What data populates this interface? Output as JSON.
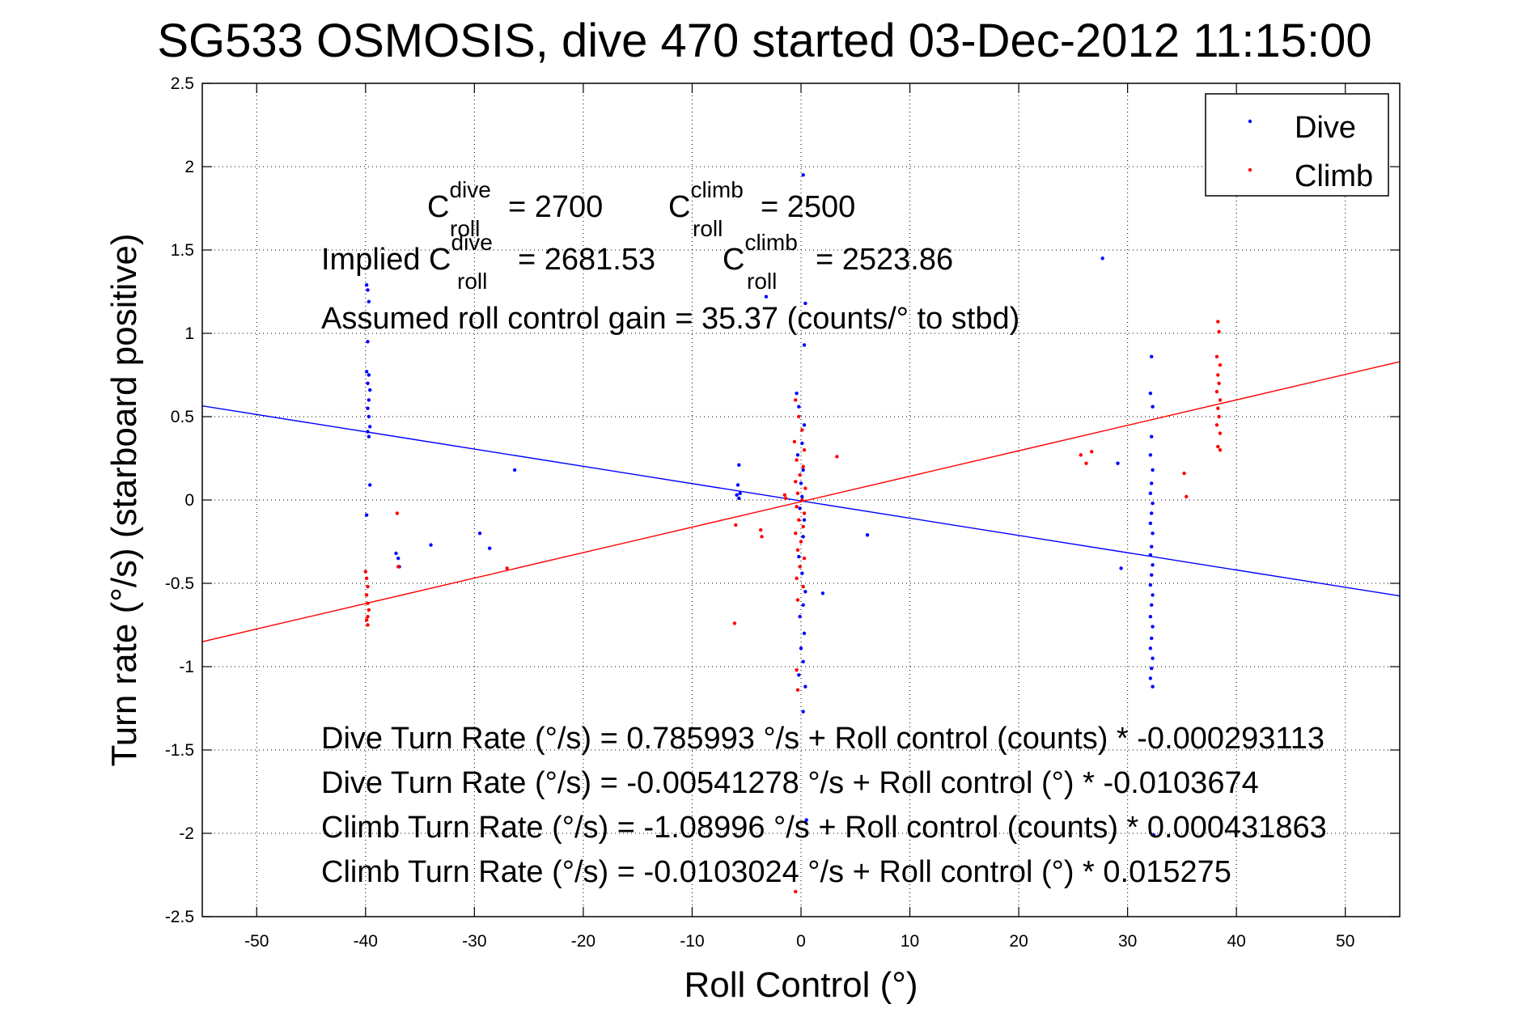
{
  "chart_data": {
    "type": "scatter",
    "title": "SG533 OSMOSIS, dive 470 started 03-Dec-2012 11:15:00",
    "xlabel": "Roll Control (°)",
    "ylabel": "Turn rate (°/s)  (starboard positive)",
    "xlim": [
      -55,
      55
    ],
    "ylim": [
      -2.5,
      2.5
    ],
    "xticks": [
      -50,
      -40,
      -30,
      -20,
      -10,
      0,
      10,
      20,
      30,
      40,
      50
    ],
    "yticks": [
      -2.5,
      -2,
      -1.5,
      -1,
      -0.5,
      0,
      0.5,
      1,
      1.5,
      2,
      2.5
    ],
    "grid": true,
    "legend_position": "top-right",
    "series": [
      {
        "name": "Dive",
        "color": "#0000ff",
        "marker": "dot",
        "points": [
          [
            -39.9,
            1.29
          ],
          [
            -39.8,
            1.26
          ],
          [
            -39.7,
            1.19
          ],
          [
            -39.8,
            0.95
          ],
          [
            -39.9,
            0.77
          ],
          [
            -39.7,
            0.75
          ],
          [
            -39.8,
            0.7
          ],
          [
            -39.6,
            0.66
          ],
          [
            -39.7,
            0.6
          ],
          [
            -39.8,
            0.55
          ],
          [
            -39.7,
            0.5
          ],
          [
            -39.6,
            0.44
          ],
          [
            -39.8,
            0.41
          ],
          [
            -39.7,
            0.38
          ],
          [
            -39.6,
            0.09
          ],
          [
            -39.9,
            -0.09
          ],
          [
            -37.2,
            -0.32
          ],
          [
            -37.0,
            -0.35
          ],
          [
            -36.9,
            -0.4
          ],
          [
            -34.0,
            -0.27
          ],
          [
            -29.5,
            -0.2
          ],
          [
            -28.6,
            -0.29
          ],
          [
            -26.3,
            0.18
          ],
          [
            -5.7,
            0.21
          ],
          [
            -5.8,
            0.09
          ],
          [
            -5.6,
            0.04
          ],
          [
            -5.9,
            0.03
          ],
          [
            -5.7,
            0.01
          ],
          [
            -3.2,
            1.22
          ],
          [
            0.2,
            1.95
          ],
          [
            0.4,
            1.18
          ],
          [
            0.3,
            0.93
          ],
          [
            -0.4,
            0.64
          ],
          [
            -0.2,
            0.56
          ],
          [
            0.3,
            0.45
          ],
          [
            0.1,
            0.34
          ],
          [
            -0.3,
            0.27
          ],
          [
            0.2,
            0.18
          ],
          [
            0.0,
            0.1
          ],
          [
            0.1,
            0.02
          ],
          [
            -0.1,
            -0.05
          ],
          [
            0.3,
            -0.12
          ],
          [
            0.2,
            -0.22
          ],
          [
            -0.2,
            -0.34
          ],
          [
            0.1,
            -0.44
          ],
          [
            0.4,
            -0.55
          ],
          [
            0.2,
            -0.63
          ],
          [
            -0.1,
            -0.7
          ],
          [
            0.3,
            -0.8
          ],
          [
            0.0,
            -0.89
          ],
          [
            0.2,
            -0.97
          ],
          [
            -0.2,
            -1.05
          ],
          [
            0.4,
            -1.12
          ],
          [
            0.2,
            -1.27
          ],
          [
            0.5,
            -1.92
          ],
          [
            2.0,
            -0.56
          ],
          [
            6.1,
            -0.21
          ],
          [
            27.7,
            1.45
          ],
          [
            29.1,
            0.22
          ],
          [
            29.4,
            -0.41
          ],
          [
            32.2,
            0.86
          ],
          [
            32.1,
            0.64
          ],
          [
            32.3,
            0.56
          ],
          [
            32.2,
            0.38
          ],
          [
            32.1,
            0.27
          ],
          [
            32.3,
            0.18
          ],
          [
            32.2,
            0.1
          ],
          [
            32.1,
            0.04
          ],
          [
            32.3,
            -0.02
          ],
          [
            32.2,
            -0.08
          ],
          [
            32.1,
            -0.14
          ],
          [
            32.3,
            -0.2
          ],
          [
            32.2,
            -0.28
          ],
          [
            32.1,
            -0.33
          ],
          [
            32.3,
            -0.39
          ],
          [
            32.2,
            -0.45
          ],
          [
            32.1,
            -0.51
          ],
          [
            32.3,
            -0.57
          ],
          [
            32.2,
            -0.63
          ],
          [
            32.1,
            -0.7
          ],
          [
            32.3,
            -0.76
          ],
          [
            32.2,
            -0.83
          ],
          [
            32.1,
            -0.89
          ],
          [
            32.3,
            -0.95
          ],
          [
            32.2,
            -1.01
          ],
          [
            32.1,
            -1.07
          ],
          [
            32.3,
            -1.12
          ],
          [
            32.4,
            -2.01
          ]
        ],
        "fit_line": {
          "intercept": -0.00541278,
          "slope": -0.0103674
        }
      },
      {
        "name": "Climb",
        "color": "#ff0000",
        "marker": "dot",
        "points": [
          [
            -40.0,
            -0.43
          ],
          [
            -39.9,
            -0.47
          ],
          [
            -39.8,
            -0.52
          ],
          [
            -39.9,
            -0.57
          ],
          [
            -39.8,
            -0.62
          ],
          [
            -39.7,
            -0.66
          ],
          [
            -39.8,
            -0.7
          ],
          [
            -39.9,
            -0.72
          ],
          [
            -39.8,
            -0.75
          ],
          [
            -37.1,
            -0.08
          ],
          [
            -37.0,
            -0.4
          ],
          [
            -27.0,
            -0.41
          ],
          [
            -6.0,
            -0.15
          ],
          [
            -6.1,
            -0.74
          ],
          [
            -3.7,
            -0.18
          ],
          [
            -3.6,
            -0.22
          ],
          [
            -1.5,
            0.03
          ],
          [
            -1.4,
            0.01
          ],
          [
            -0.5,
            0.6
          ],
          [
            -0.2,
            0.5
          ],
          [
            0.1,
            0.42
          ],
          [
            -0.6,
            0.35
          ],
          [
            0.3,
            0.3
          ],
          [
            -0.4,
            0.24
          ],
          [
            0.2,
            0.2
          ],
          [
            -0.1,
            0.15
          ],
          [
            -0.5,
            0.11
          ],
          [
            0.4,
            0.07
          ],
          [
            -0.3,
            0.04
          ],
          [
            0.1,
            0.0
          ],
          [
            -0.4,
            -0.04
          ],
          [
            0.3,
            -0.08
          ],
          [
            -0.2,
            -0.12
          ],
          [
            0.2,
            -0.16
          ],
          [
            -0.5,
            -0.2
          ],
          [
            0.0,
            -0.25
          ],
          [
            -0.3,
            -0.3
          ],
          [
            0.3,
            -0.35
          ],
          [
            -0.1,
            -0.4
          ],
          [
            -0.4,
            -0.47
          ],
          [
            0.2,
            -0.52
          ],
          [
            -0.3,
            -0.6
          ],
          [
            -0.4,
            -1.02
          ],
          [
            -0.3,
            -1.14
          ],
          [
            -0.5,
            -2.35
          ],
          [
            3.3,
            0.26
          ],
          [
            25.7,
            0.27
          ],
          [
            26.2,
            0.22
          ],
          [
            26.7,
            0.29
          ],
          [
            35.2,
            0.16
          ],
          [
            35.4,
            0.02
          ],
          [
            38.3,
            1.07
          ],
          [
            38.4,
            1.01
          ],
          [
            38.2,
            0.86
          ],
          [
            38.5,
            0.81
          ],
          [
            38.3,
            0.75
          ],
          [
            38.4,
            0.7
          ],
          [
            38.2,
            0.65
          ],
          [
            38.5,
            0.6
          ],
          [
            38.3,
            0.55
          ],
          [
            38.4,
            0.5
          ],
          [
            38.2,
            0.45
          ],
          [
            38.5,
            0.4
          ],
          [
            38.3,
            0.32
          ],
          [
            38.5,
            0.3
          ]
        ],
        "fit_line": {
          "intercept": -0.0103024,
          "slope": 0.015275
        }
      }
    ],
    "annotations": {
      "c_roll_dive_base": "C",
      "c_roll_dive_sup": "dive",
      "c_roll_dive_sub": "roll",
      "c_roll_dive_val": "= 2700",
      "c_roll_climb_base": "C",
      "c_roll_climb_sup": "climb",
      "c_roll_climb_sub": "roll",
      "c_roll_climb_val": "= 2500",
      "implied_prefix": "Implied C",
      "implied_dive_sup": "dive",
      "implied_dive_sub": "roll",
      "implied_dive_val": "= 2681.53",
      "implied_climb_base": "C",
      "implied_climb_sup": "climb",
      "implied_climb_sub": "roll",
      "implied_climb_val": "= 2523.86",
      "gain": "Assumed roll control gain = 35.37 (counts/° to stbd)",
      "eq1": "Dive Turn Rate (°/s) = 0.785993 °/s + Roll control (counts) * -0.000293113",
      "eq2": "Dive Turn Rate (°/s) = -0.00541278 °/s + Roll control (°) * -0.0103674",
      "eq3": "Climb Turn Rate (°/s) = -1.08996 °/s + Roll control (counts) * 0.000431863",
      "eq4": "Climb Turn Rate (°/s) = -0.0103024 °/s + Roll control (°) * 0.015275"
    }
  }
}
